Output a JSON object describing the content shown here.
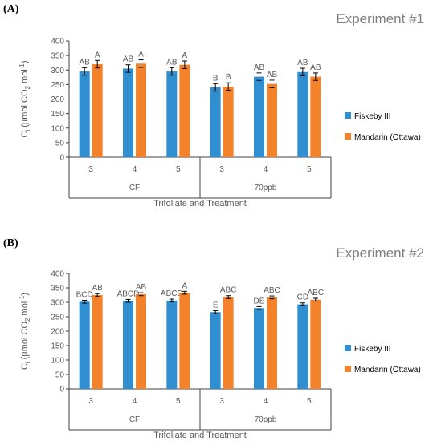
{
  "chart_data": [
    {
      "type": "bar",
      "panel_label": "(A)",
      "title": "Experiment #1",
      "ylabel": "Cᵢ (µmol CO₂ mol⁻¹)",
      "xlabel": "Trifoliate and Treatment",
      "ylim": [
        0,
        400
      ],
      "yticks": [
        0,
        50,
        100,
        150,
        200,
        250,
        300,
        350,
        400
      ],
      "categories": [
        "3",
        "4",
        "5",
        "3",
        "4",
        "5"
      ],
      "groups": [
        {
          "name": "CF",
          "span": 3
        },
        {
          "name": "70ppb",
          "span": 3
        }
      ],
      "series": [
        {
          "name": "Fiskeby III",
          "color": "#2f8fd0",
          "values": [
            295,
            305,
            295,
            240,
            277,
            293
          ],
          "errors": [
            13,
            13,
            13,
            13,
            13,
            13
          ],
          "labels": [
            "AB",
            "AB",
            "AB",
            "B",
            "AB",
            "AB"
          ]
        },
        {
          "name": "Mandarin (Ottawa)",
          "color": "#f4822b",
          "values": [
            320,
            322,
            318,
            243,
            252,
            277
          ],
          "errors": [
            13,
            13,
            13,
            13,
            13,
            13
          ],
          "labels": [
            "A",
            "A",
            "A",
            "B",
            "AB",
            "AB"
          ]
        }
      ],
      "legend_position": "right",
      "grid": false
    },
    {
      "type": "bar",
      "panel_label": "(B)",
      "title": "Experiment #2",
      "ylabel": "Cᵢ (µmol CO₂ mol⁻¹)",
      "xlabel": "Trifoliate and Treatment",
      "ylim": [
        0,
        400
      ],
      "yticks": [
        0,
        50,
        100,
        150,
        200,
        250,
        300,
        350,
        400
      ],
      "categories": [
        "3",
        "4",
        "5",
        "3",
        "4",
        "5"
      ],
      "groups": [
        {
          "name": "CF",
          "span": 3
        },
        {
          "name": "70ppb",
          "span": 3
        }
      ],
      "series": [
        {
          "name": "Fiskeby III",
          "color": "#2f8fd0",
          "values": [
            302,
            305,
            306,
            266,
            280,
            293
          ],
          "errors": [
            5,
            5,
            5,
            5,
            5,
            5
          ],
          "labels": [
            "BCD",
            "ABCD",
            "ABCD",
            "E",
            "DE",
            "CD"
          ]
        },
        {
          "name": "Mandarin (Ottawa)",
          "color": "#f4822b",
          "values": [
            325,
            328,
            333,
            318,
            317,
            309
          ],
          "errors": [
            5,
            5,
            5,
            5,
            5,
            5
          ],
          "labels": [
            "AB",
            "AB",
            "A",
            "ABC",
            "ABC",
            "ABC"
          ]
        }
      ],
      "legend_position": "right",
      "grid": false
    }
  ]
}
